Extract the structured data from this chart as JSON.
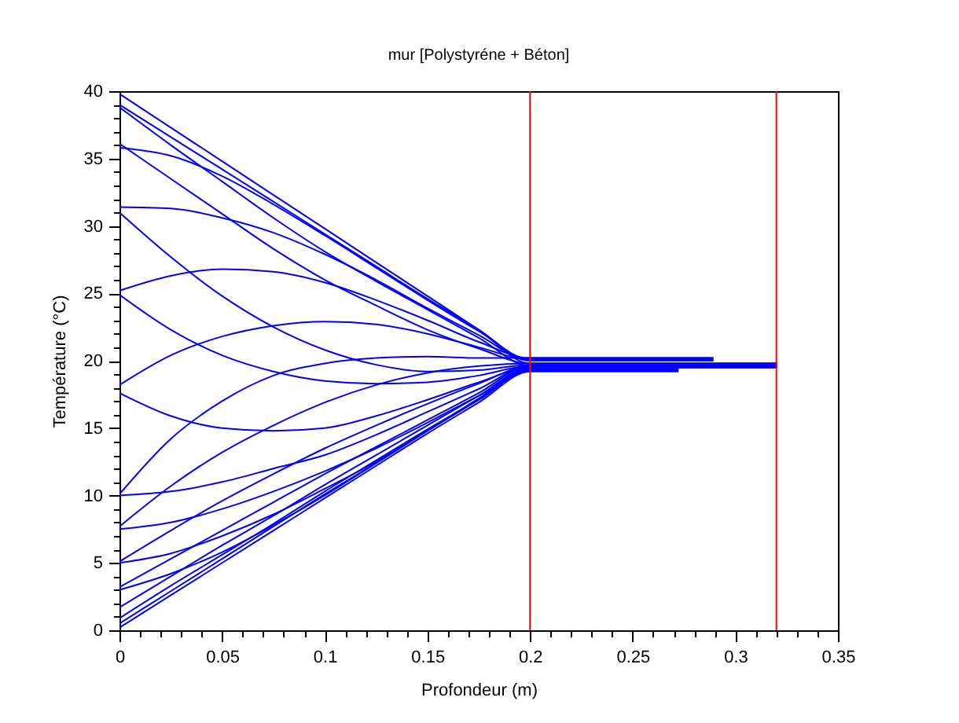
{
  "chart_data": {
    "type": "line",
    "title": "mur [Polystyréne + Béton]",
    "xlabel": "Profondeur (m)",
    "ylabel": "Température (°C)",
    "xlim": [
      0,
      0.35
    ],
    "xticks": [
      0,
      {
        "value": 0.01,
        "label": null
      },
      {
        "value": 0.02,
        "label": null
      },
      {
        "value": 0.03,
        "label": null
      },
      {
        "value": 0.04,
        "label": null
      },
      0.05,
      {
        "value": 0.06,
        "label": null
      },
      {
        "value": 0.07,
        "label": null
      },
      {
        "value": 0.08,
        "label": null
      },
      {
        "value": 0.09,
        "label": null
      },
      0.1,
      {
        "value": 0.11,
        "label": null
      },
      {
        "value": 0.12,
        "label": null
      },
      {
        "value": 0.13,
        "label": null
      },
      {
        "value": 0.14,
        "label": null
      },
      0.15,
      {
        "value": 0.16,
        "label": null
      },
      {
        "value": 0.17,
        "label": null
      },
      {
        "value": 0.18,
        "label": null
      },
      {
        "value": 0.19,
        "label": null
      },
      0.2,
      {
        "value": 0.21,
        "label": null
      },
      {
        "value": 0.22,
        "label": null
      },
      {
        "value": 0.23,
        "label": null
      },
      {
        "value": 0.24,
        "label": null
      },
      0.25,
      {
        "value": 0.26,
        "label": null
      },
      {
        "value": 0.27,
        "label": null
      },
      {
        "value": 0.28,
        "label": null
      },
      {
        "value": 0.29,
        "label": null
      },
      0.3,
      {
        "value": 0.31,
        "label": null
      },
      {
        "value": 0.32,
        "label": null
      },
      {
        "value": 0.33,
        "label": null
      },
      {
        "value": 0.34,
        "label": null
      },
      0.35
    ],
    "ylim": [
      0,
      40
    ],
    "yticks": [
      0,
      {
        "value": 1,
        "label": null
      },
      {
        "value": 2,
        "label": null
      },
      {
        "value": 3,
        "label": null
      },
      {
        "value": 4,
        "label": null
      },
      5,
      {
        "value": 6,
        "label": null
      },
      {
        "value": 7,
        "label": null
      },
      {
        "value": 8,
        "label": null
      },
      {
        "value": 9,
        "label": null
      },
      10,
      {
        "value": 11,
        "label": null
      },
      {
        "value": 12,
        "label": null
      },
      {
        "value": 13,
        "label": null
      },
      {
        "value": 14,
        "label": null
      },
      15,
      {
        "value": 16,
        "label": null
      },
      {
        "value": 17,
        "label": null
      },
      {
        "value": 18,
        "label": null
      },
      {
        "value": 19,
        "label": null
      },
      20,
      {
        "value": 21,
        "label": null
      },
      {
        "value": 22,
        "label": null
      },
      {
        "value": 23,
        "label": null
      },
      {
        "value": 24,
        "label": null
      },
      25,
      {
        "value": 26,
        "label": null
      },
      {
        "value": 27,
        "label": null
      },
      {
        "value": 28,
        "label": null
      },
      {
        "value": 29,
        "label": null
      },
      30,
      {
        "value": 31,
        "label": null
      },
      {
        "value": 32,
        "label": null
      },
      {
        "value": 33,
        "label": null
      },
      {
        "value": 34,
        "label": null
      },
      35,
      {
        "value": 36,
        "label": null
      },
      {
        "value": 37,
        "label": null
      },
      {
        "value": 38,
        "label": null
      },
      {
        "value": 39,
        "label": null
      },
      40
    ],
    "x": [
      0,
      0.025,
      0.05,
      0.075,
      0.1,
      0.125,
      0.15,
      0.175,
      0.2,
      0.32
    ],
    "series": [
      {
        "color": "#0000ff",
        "values": [
          39.8,
          37.3,
          34.8,
          32.3,
          29.8,
          27.3,
          24.8,
          22.3,
          19.8,
          19.8
        ]
      },
      {
        "color": "#0000ff",
        "x": [
          0,
          0.025,
          0.05,
          0.075,
          0.1,
          0.125,
          0.15,
          0.175,
          0.2,
          0.289
        ],
        "values": [
          39.0,
          36.6,
          34.2,
          31.8,
          29.4,
          27.0,
          24.6,
          22.3,
          20.0,
          20.0
        ]
      },
      {
        "color": "#0000ff",
        "values": [
          38.8,
          36.0,
          33.3,
          30.6,
          28.1,
          25.9,
          23.8,
          21.7,
          19.6,
          19.6
        ]
      },
      {
        "color": "#0000ff",
        "values": [
          36.1,
          33.5,
          30.9,
          28.3,
          26.0,
          24.1,
          22.3,
          20.9,
          19.8,
          19.8
        ]
      },
      {
        "color": "#0000ff",
        "x": [
          0,
          0.025,
          0.05,
          0.075,
          0.1,
          0.125,
          0.15,
          0.175,
          0.2,
          0.289
        ],
        "values": [
          35.8,
          35.2,
          33.7,
          31.6,
          29.3,
          26.9,
          24.5,
          22.2,
          20.1,
          20.1
        ]
      },
      {
        "color": "#0000ff",
        "x": [
          0,
          0.025,
          0.05,
          0.075,
          0.1,
          0.125,
          0.15,
          0.175,
          0.2,
          0.289
        ],
        "values": [
          31.4,
          31.3,
          30.6,
          29.5,
          27.9,
          26.0,
          23.9,
          21.9,
          20.0,
          20.0
        ]
      },
      {
        "color": "#0000ff",
        "values": [
          31.0,
          27.7,
          24.8,
          22.5,
          20.8,
          19.7,
          19.2,
          19.3,
          19.7,
          19.7
        ]
      },
      {
        "color": "#0000ff",
        "x": [
          0,
          0.025,
          0.05,
          0.075,
          0.1,
          0.125,
          0.15,
          0.175,
          0.2,
          0.289
        ],
        "values": [
          25.2,
          26.3,
          26.8,
          26.6,
          25.8,
          24.5,
          23.0,
          21.4,
          20.2,
          20.2
        ]
      },
      {
        "color": "#0000ff",
        "values": [
          24.9,
          22.3,
          20.4,
          19.2,
          18.5,
          18.3,
          18.4,
          18.9,
          19.6,
          19.6
        ]
      },
      {
        "color": "#0000ff",
        "x": [
          0,
          0.025,
          0.05,
          0.075,
          0.1,
          0.125,
          0.15,
          0.175,
          0.2,
          0.289
        ],
        "values": [
          18.2,
          20.4,
          21.8,
          22.6,
          22.9,
          22.7,
          22.0,
          21.0,
          20.1,
          20.1
        ]
      },
      {
        "color": "#0000ff",
        "values": [
          17.6,
          15.9,
          15.0,
          14.8,
          15.0,
          15.9,
          17.1,
          18.4,
          19.5,
          19.5
        ]
      },
      {
        "color": "#0000ff",
        "x": [
          0,
          0.025,
          0.05,
          0.075,
          0.1,
          0.125,
          0.15,
          0.175,
          0.2,
          0.289
        ],
        "values": [
          10.1,
          14.2,
          17.0,
          18.9,
          19.8,
          20.2,
          20.3,
          20.2,
          20.2,
          20.2
        ]
      },
      {
        "color": "#0000ff",
        "values": [
          10.0,
          10.3,
          11.0,
          12.0,
          13.0,
          14.5,
          16.2,
          17.9,
          19.6,
          19.6
        ]
      },
      {
        "color": "#0000ff",
        "values": [
          7.7,
          10.7,
          13.2,
          15.2,
          16.9,
          18.2,
          19.1,
          19.6,
          19.8,
          19.8
        ]
      },
      {
        "color": "#0000ff",
        "x": [
          0,
          0.025,
          0.05,
          0.075,
          0.1,
          0.125,
          0.15,
          0.175,
          0.2,
          0.272
        ],
        "values": [
          7.5,
          8.0,
          9.0,
          10.3,
          11.8,
          13.5,
          15.4,
          17.4,
          19.3,
          19.3
        ]
      },
      {
        "color": "#0000ff",
        "values": [
          5.1,
          7.4,
          9.6,
          11.6,
          13.5,
          15.2,
          16.8,
          18.3,
          19.6,
          19.6
        ]
      },
      {
        "color": "#0000ff",
        "x": [
          0,
          0.025,
          0.05,
          0.075,
          0.1,
          0.125,
          0.15,
          0.175,
          0.2,
          0.272
        ],
        "values": [
          5.0,
          5.7,
          7.0,
          8.6,
          10.5,
          12.5,
          14.8,
          17.1,
          19.3,
          19.3
        ]
      },
      {
        "color": "#0000ff",
        "values": [
          3.2,
          5.3,
          7.4,
          9.5,
          11.6,
          13.6,
          15.6,
          17.6,
          19.6,
          19.6
        ]
      },
      {
        "color": "#0000ff",
        "x": [
          0,
          0.025,
          0.05,
          0.075,
          0.1,
          0.125,
          0.15,
          0.175,
          0.2,
          0.272
        ],
        "values": [
          3.0,
          4.2,
          5.8,
          7.8,
          10.0,
          12.4,
          14.8,
          17.1,
          19.4,
          19.4
        ]
      },
      {
        "color": "#0000ff",
        "values": [
          1.7,
          4.0,
          6.3,
          8.5,
          10.8,
          13.0,
          15.2,
          17.4,
          19.5,
          19.5
        ]
      },
      {
        "color": "#0000ff",
        "x": [
          0,
          0.025,
          0.05,
          0.075,
          0.1,
          0.125,
          0.15,
          0.175,
          0.2,
          0.272
        ],
        "values": [
          0.9,
          3.3,
          5.6,
          7.9,
          10.3,
          12.6,
          14.9,
          17.1,
          19.3,
          19.3
        ]
      },
      {
        "color": "#0000ff",
        "values": [
          0.5,
          2.9,
          5.3,
          7.7,
          10.1,
          12.4,
          14.8,
          17.2,
          19.5,
          19.5
        ]
      },
      {
        "color": "#0000ff",
        "x": [
          0,
          0.025,
          0.05,
          0.075,
          0.1,
          0.125,
          0.15,
          0.175,
          0.2,
          0.272
        ],
        "values": [
          0.2,
          2.6,
          5.0,
          7.4,
          9.8,
          12.2,
          14.6,
          16.9,
          19.2,
          19.2
        ]
      }
    ],
    "ref_lines": [
      {
        "axis": "x",
        "value": 0.2,
        "color": "#ff0000"
      },
      {
        "axis": "x",
        "value": 0.32,
        "color": "#ff0000"
      }
    ]
  }
}
